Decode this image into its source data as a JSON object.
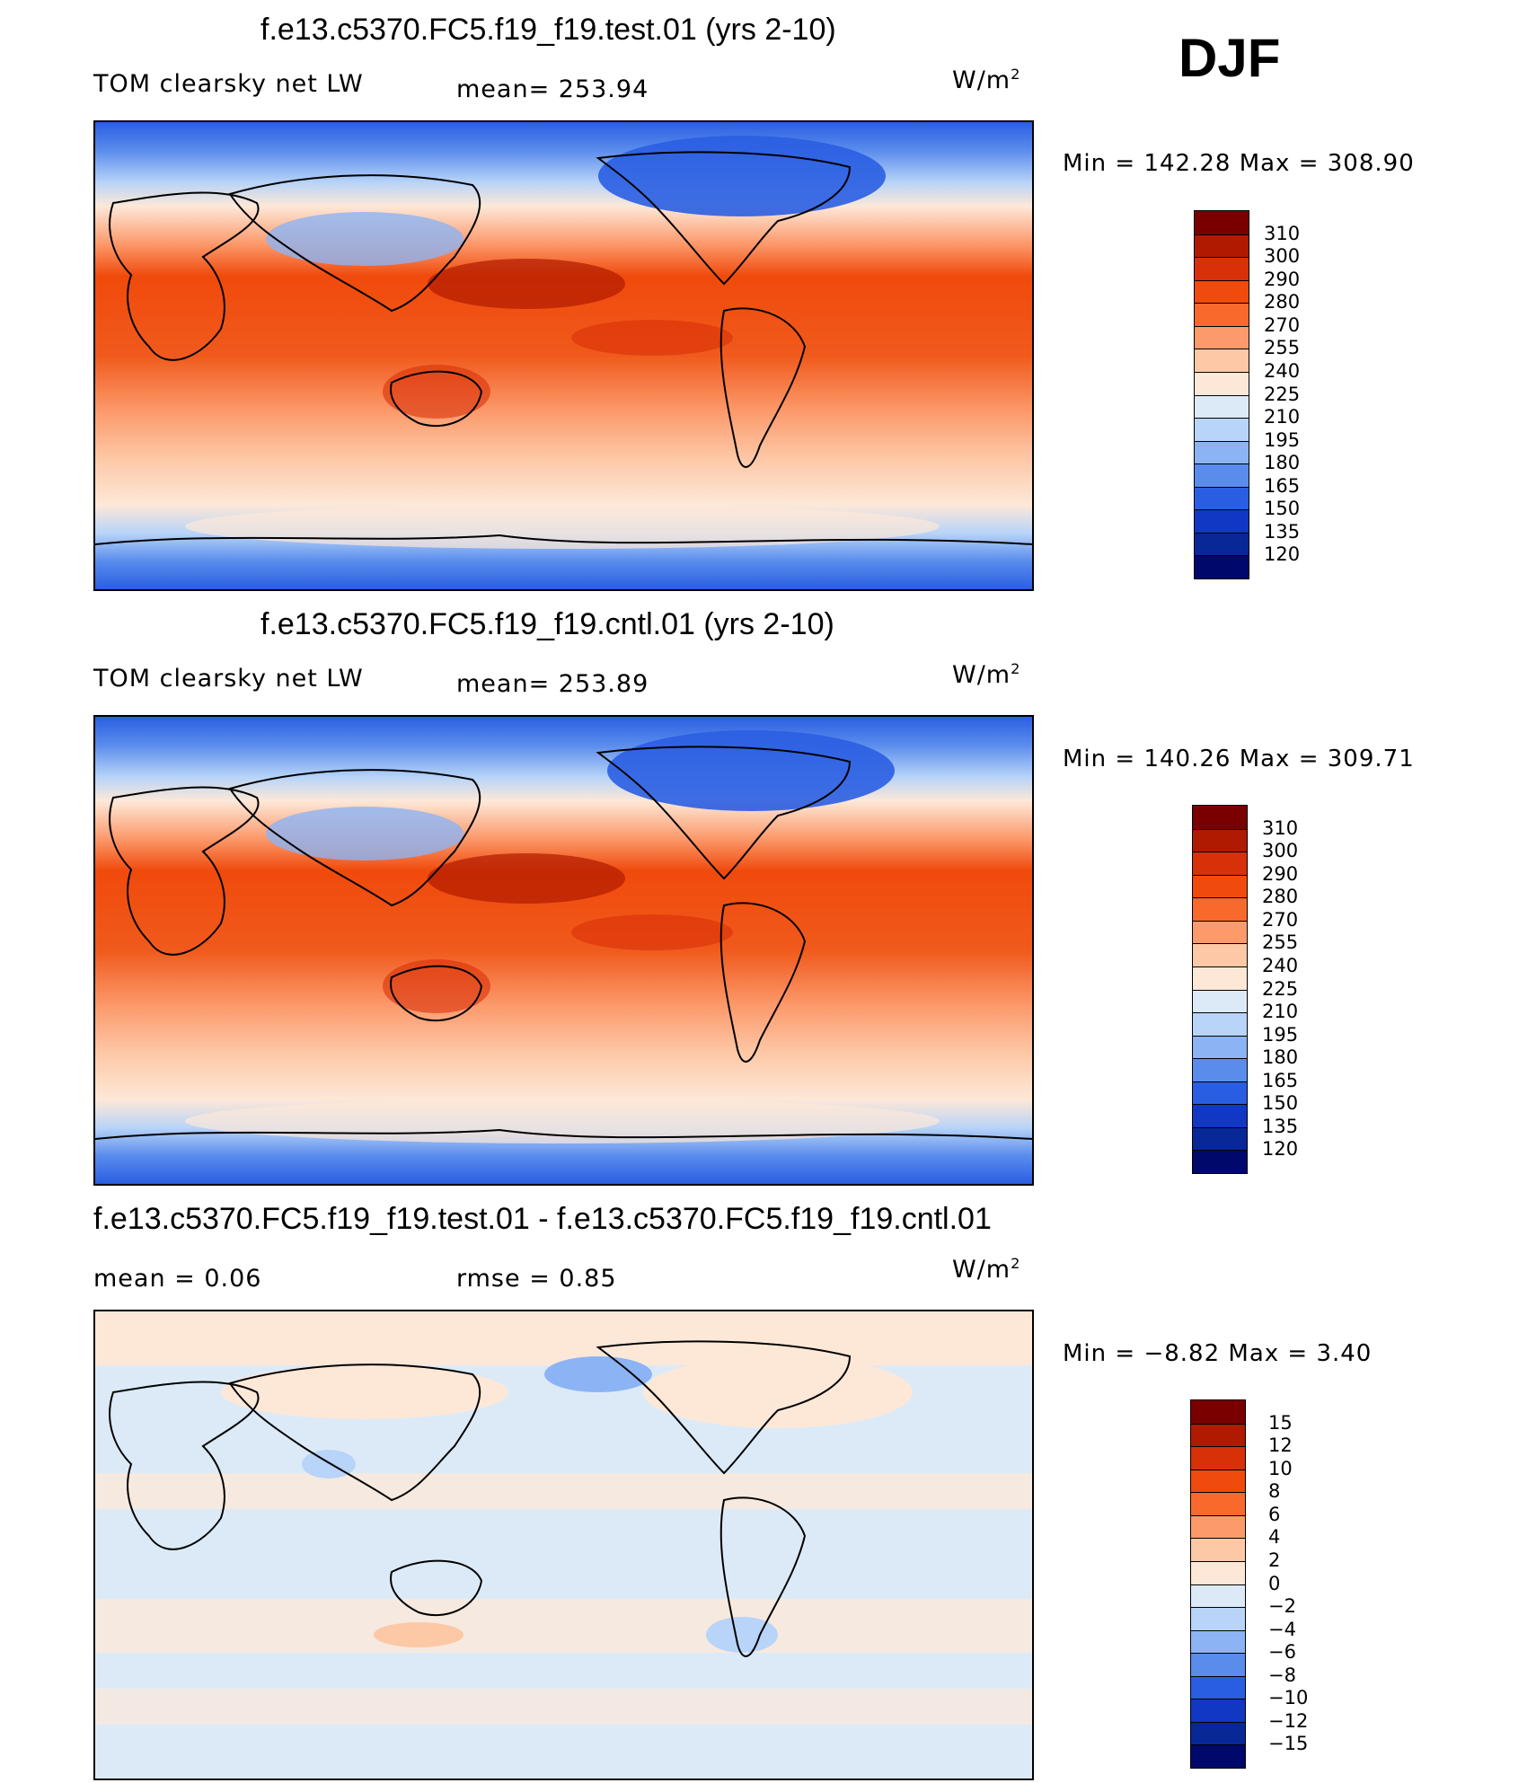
{
  "season": "DJF",
  "panels": [
    {
      "title": "f.e13.c5370.FC5.f19_f19.test.01 (yrs 2-10)",
      "left_label": "TOM clearsky net LW",
      "center_label": "mean= 253.94",
      "units_base": "W/m",
      "units_exp": "2",
      "minmax": "Min  =  142.28  Max  =  308.90",
      "colorbar": {
        "colors": [
          "#7a0000",
          "#b01a00",
          "#d83008",
          "#f04a0c",
          "#f86a2c",
          "#fc9a6c",
          "#fdc8a6",
          "#fde8d8",
          "#dceaf8",
          "#b8d4f8",
          "#8cb4f4",
          "#5a8cec",
          "#2a5ee2",
          "#1038c4",
          "#082898",
          "#00086c"
        ],
        "labels": [
          "310",
          "300",
          "290",
          "280",
          "270",
          "255",
          "240",
          "225",
          "210",
          "195",
          "180",
          "165",
          "150",
          "135",
          "120"
        ]
      }
    },
    {
      "title": "f.e13.c5370.FC5.f19_f19.cntl.01 (yrs 2-10)",
      "left_label": "TOM clearsky net LW",
      "center_label": "mean= 253.89",
      "units_base": "W/m",
      "units_exp": "2",
      "minmax": "Min  =  140.26  Max  =  309.71",
      "colorbar": {
        "colors": [
          "#7a0000",
          "#b01a00",
          "#d83008",
          "#f04a0c",
          "#f86a2c",
          "#fc9a6c",
          "#fdc8a6",
          "#fde8d8",
          "#dceaf8",
          "#b8d4f8",
          "#8cb4f4",
          "#5a8cec",
          "#2a5ee2",
          "#1038c4",
          "#082898",
          "#00086c"
        ],
        "labels": [
          "310",
          "300",
          "290",
          "280",
          "270",
          "255",
          "240",
          "225",
          "210",
          "195",
          "180",
          "165",
          "150",
          "135",
          "120"
        ]
      }
    },
    {
      "title": "f.e13.c5370.FC5.f19_f19.test.01 - f.e13.c5370.FC5.f19_f19.cntl.01",
      "left_label": "mean =      0.06",
      "center_label": "rmse =      0.85",
      "units_base": "W/m",
      "units_exp": "2",
      "minmax": "Min  =    −8.82  Max  =      3.40",
      "colorbar": {
        "colors": [
          "#7a0000",
          "#b01a00",
          "#d83008",
          "#f04a0c",
          "#f86a2c",
          "#fc9a6c",
          "#fdc8a6",
          "#fde8d8",
          "#dceaf8",
          "#b8d4f8",
          "#8cb4f4",
          "#5a8cec",
          "#2a5ee2",
          "#1038c4",
          "#082898",
          "#00086c"
        ],
        "labels": [
          "15",
          "12",
          "10",
          "8",
          "6",
          "4",
          "2",
          "0",
          "−2",
          "−4",
          "−6",
          "−8",
          "−10",
          "−12",
          "−15"
        ]
      }
    }
  ]
}
